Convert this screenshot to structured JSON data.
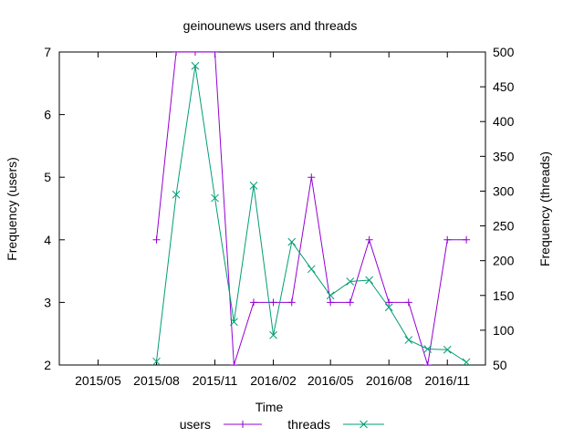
{
  "chart_data": {
    "type": "line",
    "title": "geinounews users and threads",
    "xlabel": "Time",
    "ylabel": "Frequency (users)",
    "y2label": "Frequency (threads)",
    "ylim": [
      2,
      7
    ],
    "y2lim": [
      50,
      500
    ],
    "xlim": [
      "2015-03-01",
      "2016-12-31"
    ],
    "x_ticks": [
      "2015/05",
      "2015/08",
      "2015/11",
      "2016/02",
      "2016/05",
      "2016/08",
      "2016/11"
    ],
    "y_ticks": [
      2,
      3,
      4,
      5,
      6,
      7
    ],
    "y2_ticks": [
      50,
      100,
      150,
      200,
      250,
      300,
      350,
      400,
      450,
      500
    ],
    "grid": false,
    "legend": "bottom",
    "series": [
      {
        "name": "users",
        "axis": "y",
        "color": "#9400d3",
        "marker": "plus",
        "points": [
          {
            "x": "2015-08-01",
            "y": 4
          },
          {
            "x": "2015-09-01",
            "y": 7
          },
          {
            "x": "2015-10-01",
            "y": 7
          },
          {
            "x": "2015-11-01",
            "y": 7
          },
          {
            "x": "2015-12-01",
            "y": 2
          },
          {
            "x": "2016-01-01",
            "y": 3
          },
          {
            "x": "2016-02-01",
            "y": 3
          },
          {
            "x": "2016-03-01",
            "y": 3
          },
          {
            "x": "2016-04-01",
            "y": 5
          },
          {
            "x": "2016-05-01",
            "y": 3
          },
          {
            "x": "2016-06-01",
            "y": 3
          },
          {
            "x": "2016-07-01",
            "y": 4
          },
          {
            "x": "2016-08-01",
            "y": 3
          },
          {
            "x": "2016-09-01",
            "y": 3
          },
          {
            "x": "2016-10-01",
            "y": 2
          },
          {
            "x": "2016-11-01",
            "y": 4
          },
          {
            "x": "2016-12-01",
            "y": 4
          }
        ]
      },
      {
        "name": "threads",
        "axis": "y2",
        "color": "#009e73",
        "marker": "cross",
        "points": [
          {
            "x": "2015-08-01",
            "y": 55
          },
          {
            "x": "2015-09-01",
            "y": 295
          },
          {
            "x": "2015-10-01",
            "y": 480
          },
          {
            "x": "2015-11-01",
            "y": 290
          },
          {
            "x": "2015-12-01",
            "y": 112
          },
          {
            "x": "2016-01-01",
            "y": 308
          },
          {
            "x": "2016-02-01",
            "y": 93
          },
          {
            "x": "2016-03-01",
            "y": 227
          },
          {
            "x": "2016-04-01",
            "y": 188
          },
          {
            "x": "2016-05-01",
            "y": 150
          },
          {
            "x": "2016-06-01",
            "y": 170
          },
          {
            "x": "2016-07-01",
            "y": 172
          },
          {
            "x": "2016-08-01",
            "y": 133
          },
          {
            "x": "2016-09-01",
            "y": 86
          },
          {
            "x": "2016-10-01",
            "y": 73
          },
          {
            "x": "2016-11-01",
            "y": 72
          },
          {
            "x": "2016-12-01",
            "y": 54
          }
        ]
      }
    ]
  }
}
